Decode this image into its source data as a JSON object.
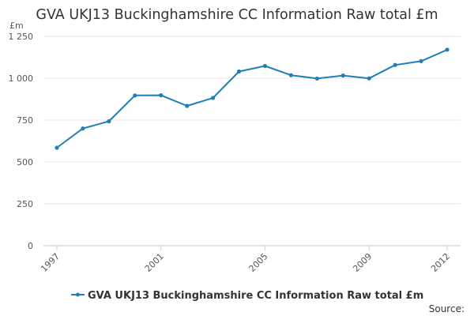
{
  "colors": {
    "series": "#1f7fb6",
    "grid": "#e6e6e6",
    "text": "#333333"
  },
  "source_label": "Source:",
  "chart_data": {
    "type": "line",
    "title": "GVA UKJ13 Buckinghamshire CC Information Raw total £m",
    "unit": "£m",
    "xlabel": "",
    "ylabel": "",
    "ylim": [
      0,
      1250
    ],
    "yticks": [
      0,
      250,
      500,
      750,
      1000,
      1250
    ],
    "ytick_labels": [
      "0",
      "250",
      "500",
      "750",
      "1 000",
      "1 250"
    ],
    "xlim": [
      1997,
      2012
    ],
    "xticks": [
      1997,
      2001,
      2005,
      2009,
      2012
    ],
    "xtick_labels": [
      "1997",
      "2001",
      "2005",
      "2009",
      "2012"
    ],
    "grid": true,
    "legend_position": "bottom",
    "series": [
      {
        "name": "GVA UKJ13 Buckinghamshire CC Information Raw total £m",
        "x": [
          1997,
          1998,
          1999,
          2000,
          2001,
          2002,
          2003,
          2004,
          2005,
          2006,
          2007,
          2008,
          2009,
          2010,
          2011,
          2012
        ],
        "values": [
          585,
          700,
          743,
          897,
          898,
          835,
          882,
          1040,
          1073,
          1018,
          998,
          1016,
          999,
          1079,
          1102,
          1170
        ]
      }
    ]
  }
}
